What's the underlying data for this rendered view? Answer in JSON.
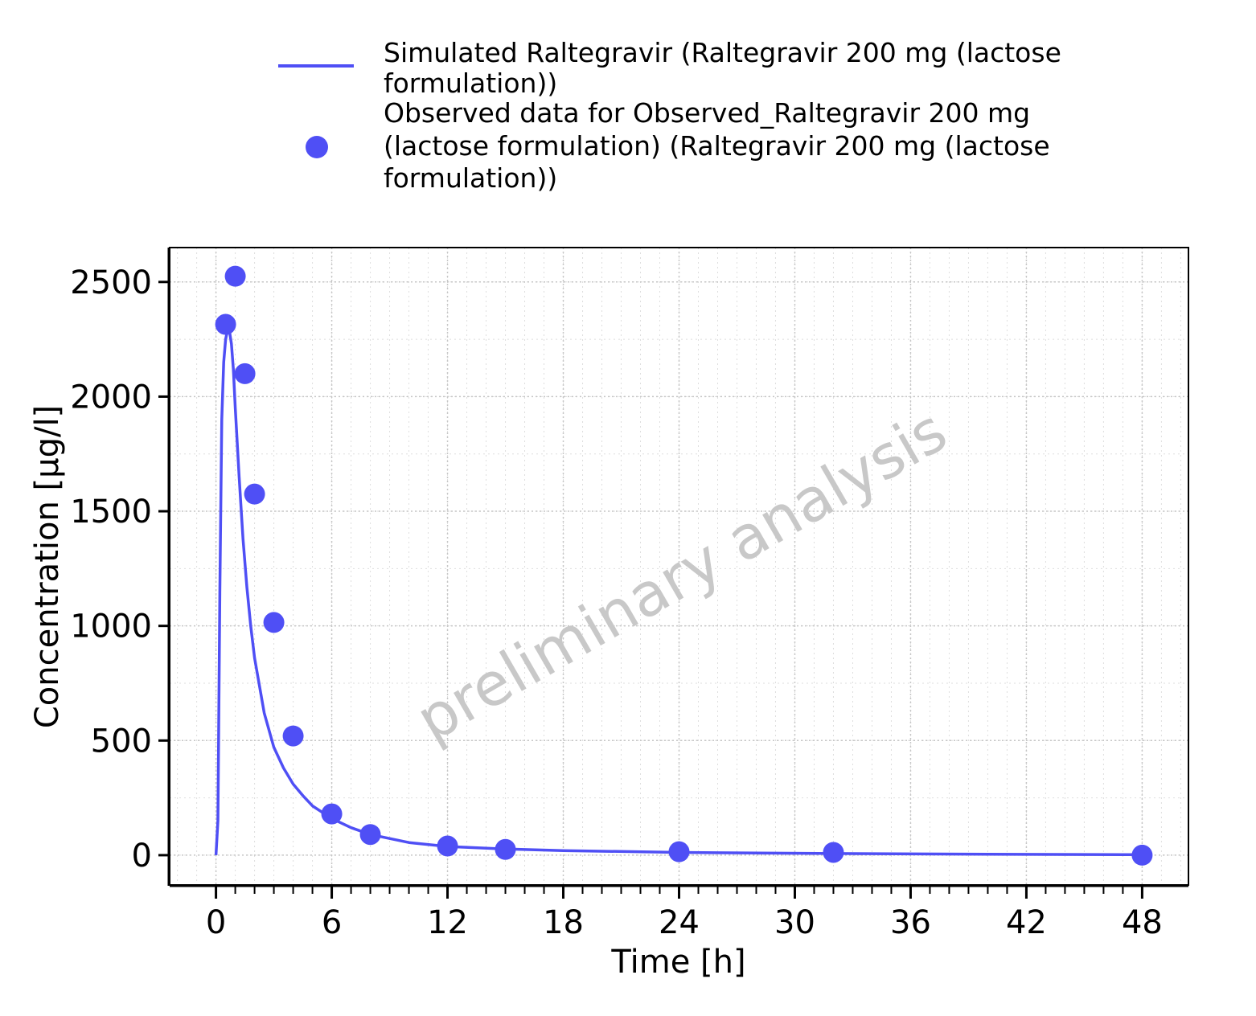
{
  "chart_data": {
    "type": "line",
    "title": "",
    "xlabel": "Time [h]",
    "ylabel": "Concentration [µg/l]",
    "xlim": [
      -2.4,
      50.4
    ],
    "ylim": [
      -130,
      2650
    ],
    "x_ticks": [
      0,
      6,
      12,
      18,
      24,
      30,
      36,
      42,
      48
    ],
    "y_ticks": [
      0,
      500,
      1000,
      1500,
      2000,
      2500
    ],
    "x_tick_labels": [
      "0",
      "6",
      "12",
      "18",
      "24",
      "30",
      "36",
      "42",
      "48"
    ],
    "y_tick_labels": [
      "0",
      "500",
      "1000",
      "1500",
      "2000",
      "2500"
    ],
    "grid": true,
    "legend_position": "top",
    "watermark": "preliminary analysis",
    "series": [
      {
        "name": "Simulated Raltegravir (Raltegravir 200 mg (lactose formulation))",
        "kind": "line",
        "color": "#4f4ff5",
        "x": [
          0,
          0.1,
          0.2,
          0.3,
          0.4,
          0.5,
          0.6,
          0.7,
          0.8,
          0.9,
          1.0,
          1.2,
          1.4,
          1.6,
          1.8,
          2.0,
          2.5,
          3.0,
          3.5,
          4.0,
          4.5,
          5.0,
          6.0,
          7.0,
          8.0,
          10.0,
          12.0,
          15.0,
          18.0,
          24.0,
          32.0,
          40.0,
          48.0
        ],
        "y": [
          0,
          150,
          1150,
          1900,
          2150,
          2250,
          2290,
          2285,
          2230,
          2120,
          1950,
          1650,
          1380,
          1170,
          1000,
          860,
          620,
          470,
          380,
          310,
          260,
          215,
          160,
          120,
          90,
          55,
          38,
          27,
          20,
          12,
          7,
          4,
          2
        ]
      },
      {
        "name": "Observed data for Observed_Raltegravir 200 mg (lactose formulation) (Raltegravir 200 mg (lactose formulation))",
        "kind": "scatter",
        "color": "#4f4ff5",
        "x": [
          0.5,
          1.0,
          1.5,
          2.0,
          3.0,
          4.0,
          6.0,
          8.0,
          12.0,
          15.0,
          24.0,
          32.0,
          48.0
        ],
        "y": [
          2315,
          2525,
          2100,
          1575,
          1015,
          520,
          180,
          90,
          40,
          25,
          15,
          12,
          0
        ]
      }
    ],
    "legend": {
      "line_label_lines": [
        "Simulated Raltegravir (Raltegravir 200 mg (lactose",
        "formulation))"
      ],
      "points_label_lines": [
        "Observed data for Observed_Raltegravir 200 mg",
        "(lactose formulation) (Raltegravir 200 mg (lactose",
        "formulation))"
      ]
    }
  }
}
